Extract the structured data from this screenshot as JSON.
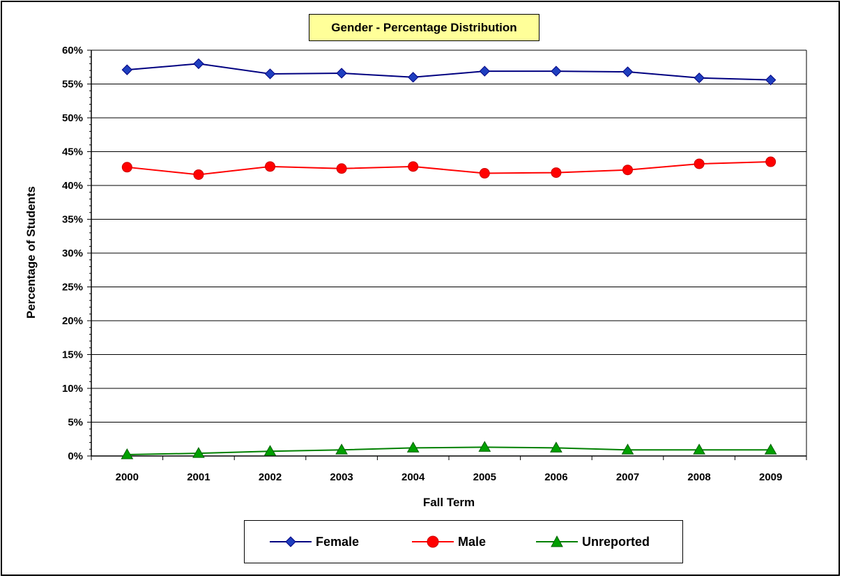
{
  "chart_data": {
    "type": "line",
    "title": "Gender - Percentage Distribution",
    "xlabel": "Fall Term",
    "ylabel": "Percentage of Students",
    "categories": [
      "2000",
      "2001",
      "2002",
      "2003",
      "2004",
      "2005",
      "2006",
      "2007",
      "2008",
      "2009"
    ],
    "ylim": [
      0,
      60
    ],
    "yticks": [
      "0%",
      "5%",
      "10%",
      "15%",
      "20%",
      "25%",
      "30%",
      "35%",
      "40%",
      "45%",
      "50%",
      "55%",
      "60%"
    ],
    "grid": true,
    "legend_position": "bottom",
    "series": [
      {
        "name": "Female",
        "color": "#000080",
        "marker": "diamond",
        "values": [
          57.1,
          58.0,
          56.5,
          56.6,
          56.0,
          56.9,
          56.9,
          56.8,
          55.9,
          55.6
        ]
      },
      {
        "name": "Male",
        "color": "#ff0000",
        "marker": "circle",
        "values": [
          42.7,
          41.6,
          42.8,
          42.5,
          42.8,
          41.8,
          41.9,
          42.3,
          43.2,
          43.5
        ]
      },
      {
        "name": "Unreported",
        "color": "#008000",
        "marker": "triangle",
        "values": [
          0.2,
          0.4,
          0.7,
          0.9,
          1.2,
          1.3,
          1.2,
          0.9,
          0.9,
          0.9
        ]
      }
    ]
  }
}
